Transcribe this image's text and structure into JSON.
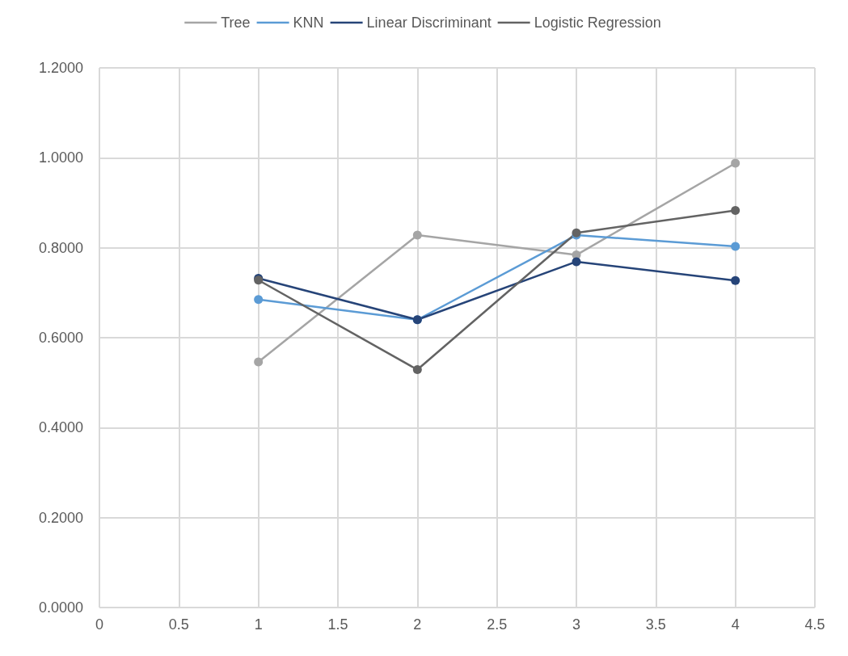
{
  "chart_data": {
    "type": "line",
    "legend": "top",
    "grid": true,
    "marker": "circle",
    "line_style": "solid",
    "xlim": [
      0,
      4.5
    ],
    "xticks": [
      0,
      0.5,
      1,
      1.5,
      2,
      2.5,
      3,
      3.5,
      4,
      4.5
    ],
    "ylim": [
      0,
      1.2
    ],
    "yticks": [
      {
        "value": 0,
        "label": "0.0000"
      },
      {
        "value": 0.2,
        "label": "0.2000"
      },
      {
        "value": 0.4,
        "label": "0.4000"
      },
      {
        "value": 0.6,
        "label": "0.6000"
      },
      {
        "value": 0.8,
        "label": "0.8000"
      },
      {
        "value": 1,
        "label": "1.0000"
      },
      {
        "value": 1.2,
        "label": "1.2000"
      }
    ],
    "x": [
      1,
      2,
      3,
      4
    ],
    "series": [
      {
        "name": "Tree",
        "color": "#a5a5a5",
        "values": [
          0.546,
          0.828,
          0.784,
          0.988
        ]
      },
      {
        "name": "KNN",
        "color": "#5b9bd5",
        "values": [
          0.685,
          0.64,
          0.828,
          0.803
        ]
      },
      {
        "name": "Linear Discriminant",
        "color": "#264478",
        "values": [
          0.732,
          0.64,
          0.769,
          0.727
        ]
      },
      {
        "name": "Logistic Regression",
        "color": "#636363",
        "values": [
          0.728,
          0.529,
          0.833,
          0.883
        ]
      }
    ]
  }
}
